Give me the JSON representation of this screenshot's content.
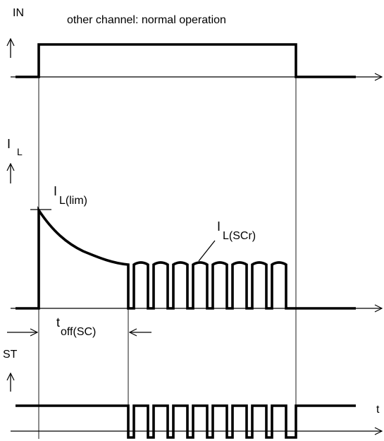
{
  "title": "other channel: normal operation",
  "signals": {
    "in": {
      "label": "IN"
    },
    "il": {
      "label_main": "I",
      "label_sub": "L"
    },
    "st": {
      "label": "ST"
    }
  },
  "annotations": {
    "il_lim": {
      "main": "I",
      "sub": "L(lim)"
    },
    "il_scr": {
      "main": "I",
      "sub": "L(SCr)"
    },
    "toff": {
      "main": "t",
      "sub": "off(SC)"
    },
    "time_axis": "t"
  }
}
